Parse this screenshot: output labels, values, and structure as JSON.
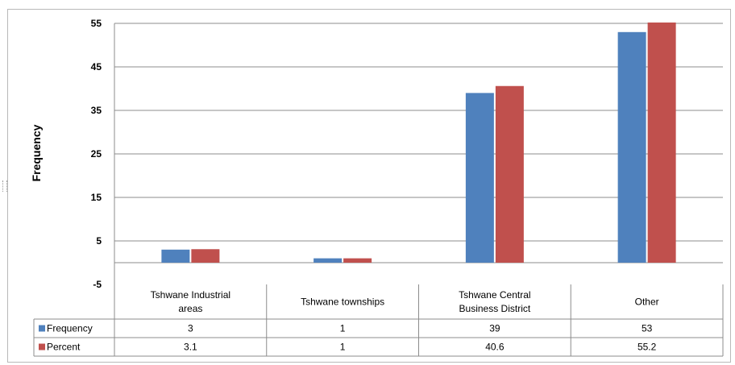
{
  "chart_data": {
    "type": "bar",
    "ylabel": "Frequency",
    "xlabel": "",
    "title": "",
    "ylim": [
      -5,
      55
    ],
    "yticks": [
      -5,
      5,
      15,
      25,
      35,
      45,
      55
    ],
    "grid": true,
    "categories": [
      [
        "Tshwane Industrial",
        "areas"
      ],
      [
        "Tshwane townships"
      ],
      [
        "Tshwane Central",
        "Business District"
      ],
      [
        "Other"
      ]
    ],
    "series": [
      {
        "name": "Frequency",
        "color": "#4f81bd",
        "values": [
          3,
          1,
          39,
          53
        ],
        "labels": [
          "3",
          "1",
          "39",
          "53"
        ]
      },
      {
        "name": "Percent",
        "color": "#c0504d",
        "values": [
          3.1,
          1,
          40.6,
          55.2
        ],
        "labels": [
          "3.1",
          "1",
          "40.6",
          "55.2"
        ]
      }
    ],
    "legend": "data-table"
  }
}
